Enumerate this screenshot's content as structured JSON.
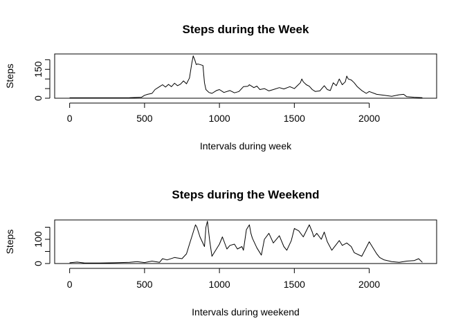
{
  "chart_data": [
    {
      "type": "line",
      "title": "Steps during the Week",
      "xlabel": "Intervals during week",
      "ylabel": "Steps",
      "xlim": [
        -100,
        2450
      ],
      "ylim": [
        0,
        230
      ],
      "xticks": [
        0,
        500,
        1000,
        1500,
        2000
      ],
      "yticks": [
        0,
        50,
        100,
        150,
        200
      ],
      "yticklabels": [
        "0",
        "",
        "",
        "150",
        ""
      ],
      "grid": false,
      "legend": "none",
      "series": [
        {
          "color": "#000000",
          "x": [
            0,
            100,
            200,
            300,
            400,
            480,
            500,
            520,
            550,
            570,
            600,
            620,
            640,
            660,
            680,
            700,
            720,
            740,
            760,
            780,
            800,
            815,
            825,
            835,
            845,
            855,
            870,
            890,
            900,
            910,
            930,
            950,
            980,
            1000,
            1030,
            1070,
            1100,
            1130,
            1160,
            1190,
            1200,
            1210,
            1230,
            1250,
            1270,
            1300,
            1330,
            1360,
            1400,
            1430,
            1470,
            1500,
            1520,
            1540,
            1550,
            1560,
            1580,
            1600,
            1620,
            1640,
            1670,
            1700,
            1720,
            1740,
            1760,
            1780,
            1800,
            1820,
            1840,
            1850,
            1860,
            1880,
            1900,
            1920,
            1950,
            1980,
            2000,
            2050,
            2100,
            2150,
            2200,
            2230,
            2250,
            2300,
            2355
          ],
          "y": [
            2,
            2,
            2,
            2,
            3,
            5,
            15,
            20,
            25,
            45,
            60,
            70,
            58,
            72,
            60,
            78,
            65,
            73,
            90,
            75,
            105,
            180,
            220,
            200,
            175,
            178,
            175,
            170,
            80,
            45,
            30,
            25,
            40,
            45,
            30,
            40,
            28,
            35,
            60,
            62,
            70,
            65,
            55,
            63,
            45,
            50,
            38,
            45,
            55,
            48,
            60,
            50,
            65,
            80,
            100,
            85,
            70,
            62,
            45,
            35,
            38,
            65,
            45,
            40,
            80,
            65,
            100,
            70,
            85,
            115,
            100,
            95,
            80,
            60,
            40,
            25,
            35,
            20,
            15,
            10,
            18,
            20,
            8,
            5,
            3
          ]
        }
      ]
    },
    {
      "type": "line",
      "title": "Steps during the Weekend",
      "xlabel": "Intervals during weekend",
      "ylabel": "Steps",
      "xlim": [
        -100,
        2450
      ],
      "ylim": [
        0,
        180
      ],
      "xticks": [
        0,
        500,
        1000,
        1500,
        2000
      ],
      "yticks": [
        0,
        50,
        100,
        150
      ],
      "yticklabels": [
        "0",
        "",
        "100",
        ""
      ],
      "grid": false,
      "legend": "none",
      "series": [
        {
          "color": "#000000",
          "x": [
            0,
            50,
            100,
            200,
            300,
            400,
            450,
            500,
            550,
            600,
            620,
            650,
            700,
            750,
            780,
            800,
            820,
            840,
            850,
            870,
            900,
            910,
            920,
            935,
            950,
            980,
            1000,
            1020,
            1050,
            1070,
            1100,
            1120,
            1150,
            1160,
            1180,
            1200,
            1210,
            1220,
            1250,
            1280,
            1300,
            1330,
            1360,
            1400,
            1430,
            1450,
            1480,
            1500,
            1530,
            1560,
            1600,
            1620,
            1630,
            1650,
            1680,
            1700,
            1720,
            1750,
            1800,
            1820,
            1850,
            1880,
            1900,
            1950,
            2000,
            2020,
            2050,
            2070,
            2100,
            2150,
            2200,
            2250,
            2300,
            2330,
            2355
          ],
          "y": [
            3,
            6,
            2,
            2,
            3,
            5,
            8,
            4,
            10,
            5,
            20,
            15,
            25,
            20,
            40,
            80,
            120,
            160,
            150,
            110,
            70,
            150,
            175,
            95,
            30,
            60,
            80,
            110,
            60,
            75,
            80,
            60,
            70,
            55,
            140,
            160,
            125,
            105,
            65,
            35,
            100,
            125,
            85,
            115,
            70,
            55,
            95,
            145,
            135,
            110,
            160,
            130,
            110,
            125,
            100,
            130,
            90,
            55,
            95,
            75,
            85,
            70,
            45,
            30,
            90,
            70,
            40,
            25,
            15,
            8,
            5,
            10,
            12,
            20,
            5
          ]
        }
      ]
    }
  ]
}
